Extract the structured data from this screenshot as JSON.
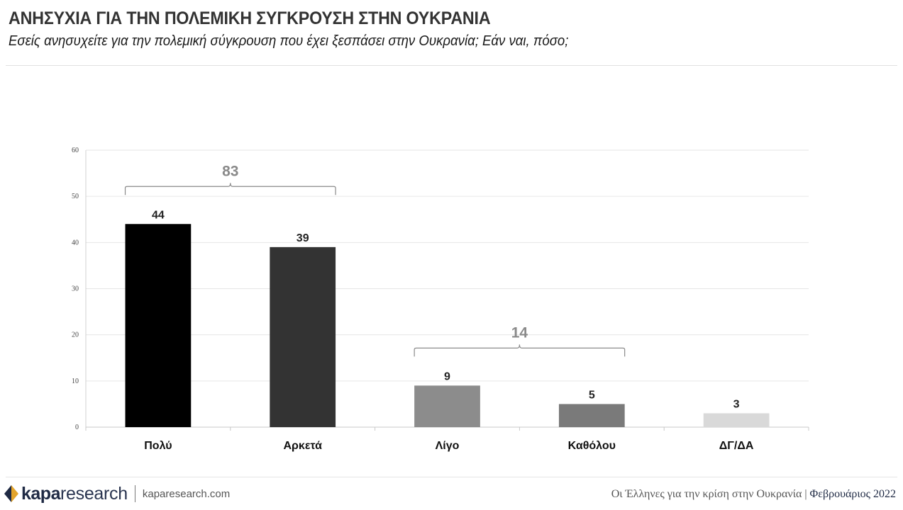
{
  "header": {
    "title": "ΑΝΗΣΥΧΙΑ ΓΙΑ ΤΗΝ ΠΟΛΕΜΙΚΗ ΣΥΓΚΡΟΥΣΗ ΣΤΗΝ ΟΥΚΡΑΝΙΑ",
    "subtitle": "Εσείς ανησυχείτε για την πολεμική σύγκρουση που έχει ξεσπάσει στην Ουκρανία; Εάν ναι, πόσο;"
  },
  "chart_data": {
    "type": "bar",
    "categories": [
      "Πολύ",
      "Αρκετά",
      "Λίγο",
      "Καθόλου",
      "ΔΓ/ΔΑ"
    ],
    "values": [
      44,
      39,
      9,
      5,
      3
    ],
    "bar_colors": [
      "#000000",
      "#333333",
      "#8c8c8c",
      "#7a7a7a",
      "#d9d9d9"
    ],
    "ylim": [
      0,
      60
    ],
    "yticks": [
      0,
      10,
      20,
      30,
      40,
      50,
      60
    ],
    "grid": true,
    "legend": "none",
    "brackets": [
      {
        "from": 0,
        "to": 1,
        "label": "83"
      },
      {
        "from": 2,
        "to": 3,
        "label": "14"
      }
    ]
  },
  "footer": {
    "brand_bold": "kapa",
    "brand_light": "research",
    "website": "kaparesearch.com",
    "report_title": "Οι Έλληνες για την κρίση στην Ουκρανία",
    "separator": "|",
    "date": "Φεβρουάριος 2022",
    "logo_colors": [
      "#1f2a44",
      "#e3a42b"
    ]
  }
}
